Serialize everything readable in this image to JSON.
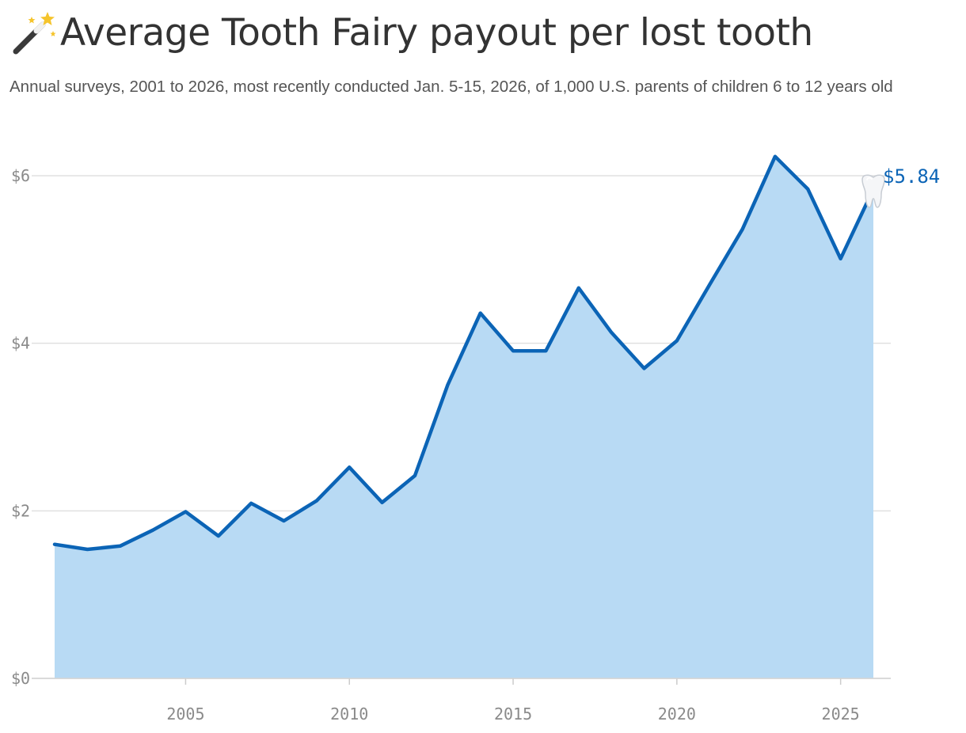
{
  "header": {
    "title": "Average Tooth Fairy payout per lost tooth",
    "title_icon": "magic-wand-icon",
    "subtitle": "Annual surveys, 2001 to 2026, most recently conducted Jan. 5-15, 2026, of 1,000 U.S. parents of children 6 to 12 years old"
  },
  "chart_data": {
    "type": "area",
    "x": [
      2001,
      2002,
      2003,
      2004,
      2005,
      2006,
      2007,
      2008,
      2009,
      2010,
      2011,
      2012,
      2013,
      2014,
      2015,
      2016,
      2017,
      2018,
      2019,
      2020,
      2021,
      2022,
      2023,
      2024,
      2025,
      2026
    ],
    "values": [
      1.6,
      1.54,
      1.58,
      1.77,
      1.99,
      1.7,
      2.09,
      1.88,
      2.12,
      2.52,
      2.1,
      2.42,
      3.5,
      4.36,
      3.91,
      3.91,
      4.66,
      4.13,
      3.7,
      4.03,
      4.7,
      5.36,
      6.23,
      5.84,
      5.01,
      5.84
    ],
    "xlim": [
      2001,
      2026
    ],
    "ylim": [
      0,
      6
    ],
    "y_ticks": [
      0,
      2,
      4,
      6
    ],
    "y_tick_labels": [
      "$0",
      "$2",
      "$4",
      "$6"
    ],
    "x_ticks": [
      2005,
      2010,
      2015,
      2020,
      2025
    ],
    "x_tick_labels": [
      "2005",
      "2010",
      "2015",
      "2020",
      "2025"
    ],
    "end_label": "$5.84",
    "end_icon": "tooth-icon",
    "grid": "horizontal",
    "line_color": "#0b64b6",
    "fill_color": "#b8daf4",
    "grid_color": "#e0e0e0"
  }
}
